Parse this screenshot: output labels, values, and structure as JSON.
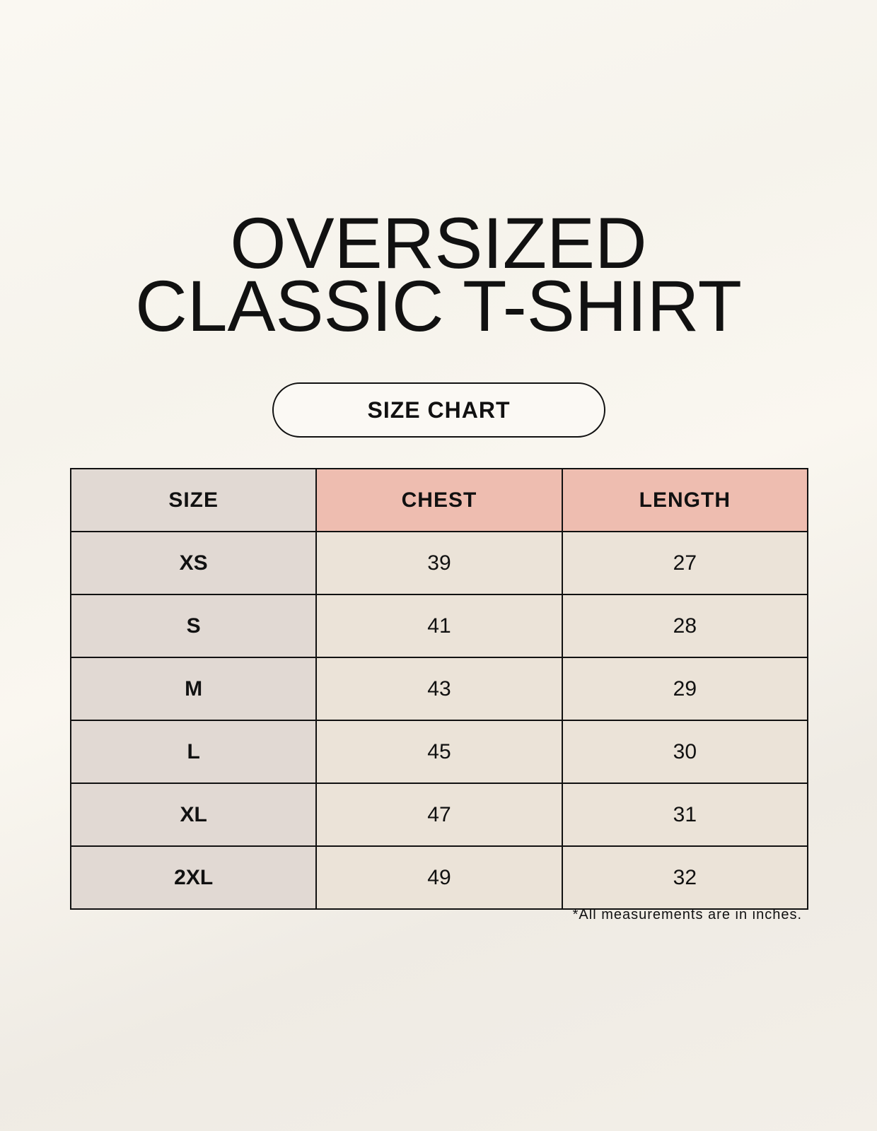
{
  "title": {
    "line1": "OVERSIZED",
    "line2": "CLASSIC T-SHIRT"
  },
  "badge": "SIZE CHART",
  "table": {
    "headers": [
      "SIZE",
      "CHEST",
      "LENGTH"
    ],
    "rows": [
      [
        "XS",
        "39",
        "27"
      ],
      [
        "S",
        "41",
        "28"
      ],
      [
        "M",
        "43",
        "29"
      ],
      [
        "L",
        "45",
        "30"
      ],
      [
        "XL",
        "47",
        "31"
      ],
      [
        "2XL",
        "49",
        "32"
      ]
    ]
  },
  "footnote": "*All measurements are in inches.",
  "colors": {
    "background": "#f8f5ee",
    "size_column": "#e1d9d3",
    "header_accent": "#eebdb0",
    "cell": "#ebe3d8"
  }
}
